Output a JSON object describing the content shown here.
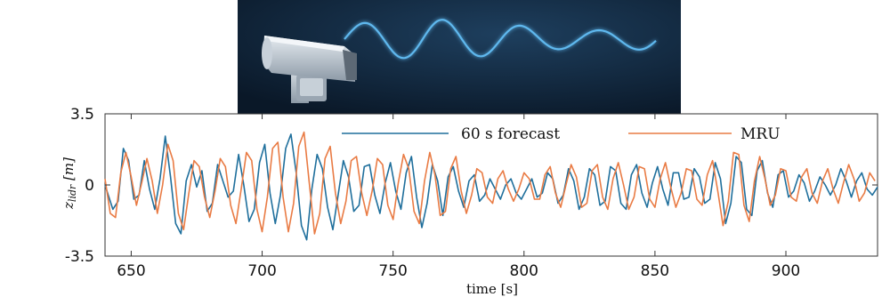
{
  "banner": {
    "description_icon": "lidar-sensor-icon",
    "background": "#0e2236",
    "beam_color": "#5fb8ee"
  },
  "chart_data": {
    "type": "line",
    "xlabel": "time [s]",
    "ylabel": "z_lidr [m]",
    "xlim": [
      640,
      935
    ],
    "ylim": [
      -3.5,
      3.5
    ],
    "x_ticks": [
      650,
      700,
      750,
      800,
      850,
      900
    ],
    "y_ticks": [
      -3.5,
      0,
      3.5
    ],
    "y_tick_labels": [
      "-3.5",
      "0",
      "3.5"
    ],
    "grid": false,
    "legend_position": "top",
    "series": [
      {
        "name": "60 s forecast",
        "color": "#1f6f9c",
        "points": [
          [
            640,
            0.0
          ],
          [
            643,
            -1.2
          ],
          [
            645,
            -0.8
          ],
          [
            647,
            1.8
          ],
          [
            649,
            1.2
          ],
          [
            651,
            -0.7
          ],
          [
            653,
            -0.5
          ],
          [
            655,
            1.2
          ],
          [
            657,
            -0.2
          ],
          [
            659,
            -1.2
          ],
          [
            661,
            0.3
          ],
          [
            663,
            2.4
          ],
          [
            665,
            0.4
          ],
          [
            667,
            -1.9
          ],
          [
            669,
            -2.4
          ],
          [
            671,
            0.2
          ],
          [
            673,
            1.0
          ],
          [
            675,
            -0.1
          ],
          [
            677,
            0.7
          ],
          [
            679,
            -1.3
          ],
          [
            681,
            -0.9
          ],
          [
            683,
            1.0
          ],
          [
            685,
            0.2
          ],
          [
            687,
            -0.6
          ],
          [
            689,
            -0.3
          ],
          [
            691,
            1.5
          ],
          [
            693,
            0.0
          ],
          [
            695,
            -1.8
          ],
          [
            697,
            -1.2
          ],
          [
            699,
            1.1
          ],
          [
            701,
            2.0
          ],
          [
            703,
            -0.4
          ],
          [
            705,
            -1.9
          ],
          [
            707,
            -0.5
          ],
          [
            709,
            1.8
          ],
          [
            711,
            2.5
          ],
          [
            713,
            0.6
          ],
          [
            715,
            -2.0
          ],
          [
            717,
            -2.7
          ],
          [
            719,
            -0.2
          ],
          [
            721,
            1.5
          ],
          [
            723,
            0.8
          ],
          [
            725,
            -1.1
          ],
          [
            727,
            -2.2
          ],
          [
            729,
            -0.5
          ],
          [
            731,
            1.2
          ],
          [
            733,
            0.4
          ],
          [
            735,
            -1.3
          ],
          [
            737,
            -1.0
          ],
          [
            739,
            0.9
          ],
          [
            741,
            1.0
          ],
          [
            743,
            -0.5
          ],
          [
            745,
            -1.4
          ],
          [
            747,
            0.1
          ],
          [
            749,
            1.1
          ],
          [
            751,
            -0.3
          ],
          [
            753,
            -1.2
          ],
          [
            755,
            0.6
          ],
          [
            757,
            1.4
          ],
          [
            759,
            -0.6
          ],
          [
            761,
            -2.1
          ],
          [
            763,
            -0.9
          ],
          [
            765,
            1.0
          ],
          [
            767,
            0.2
          ],
          [
            769,
            -1.5
          ],
          [
            771,
            0.4
          ],
          [
            773,
            0.9
          ],
          [
            775,
            -0.3
          ],
          [
            777,
            -1.1
          ],
          [
            779,
            0.2
          ],
          [
            781,
            0.5
          ],
          [
            783,
            -0.8
          ],
          [
            785,
            -0.5
          ],
          [
            787,
            0.3
          ],
          [
            789,
            -0.2
          ],
          [
            791,
            -0.7
          ],
          [
            793,
            0.0
          ],
          [
            795,
            0.3
          ],
          [
            797,
            -0.4
          ],
          [
            799,
            -0.7
          ],
          [
            801,
            -0.2
          ],
          [
            803,
            0.3
          ],
          [
            805,
            -0.6
          ],
          [
            807,
            -0.4
          ],
          [
            809,
            0.6
          ],
          [
            811,
            0.3
          ],
          [
            813,
            -0.9
          ],
          [
            815,
            -0.5
          ],
          [
            817,
            0.8
          ],
          [
            819,
            0.2
          ],
          [
            821,
            -1.2
          ],
          [
            823,
            -0.6
          ],
          [
            825,
            0.8
          ],
          [
            827,
            0.5
          ],
          [
            829,
            -1.0
          ],
          [
            831,
            -0.8
          ],
          [
            833,
            0.9
          ],
          [
            835,
            0.7
          ],
          [
            837,
            -0.9
          ],
          [
            839,
            -1.2
          ],
          [
            841,
            0.5
          ],
          [
            843,
            1.0
          ],
          [
            845,
            -0.4
          ],
          [
            847,
            -1.1
          ],
          [
            849,
            0.1
          ],
          [
            851,
            0.9
          ],
          [
            853,
            -0.2
          ],
          [
            855,
            -1.0
          ],
          [
            857,
            0.6
          ],
          [
            859,
            0.6
          ],
          [
            861,
            -0.7
          ],
          [
            863,
            -0.6
          ],
          [
            865,
            0.8
          ],
          [
            867,
            0.4
          ],
          [
            869,
            -0.9
          ],
          [
            871,
            -0.7
          ],
          [
            873,
            1.1
          ],
          [
            875,
            0.3
          ],
          [
            877,
            -1.9
          ],
          [
            879,
            -0.9
          ],
          [
            881,
            1.4
          ],
          [
            883,
            1.1
          ],
          [
            885,
            -1.2
          ],
          [
            887,
            -1.5
          ],
          [
            889,
            0.7
          ],
          [
            891,
            1.2
          ],
          [
            893,
            -0.4
          ],
          [
            895,
            -1.1
          ],
          [
            897,
            0.5
          ],
          [
            899,
            0.7
          ],
          [
            901,
            -0.6
          ],
          [
            903,
            -0.3
          ],
          [
            905,
            0.5
          ],
          [
            907,
            0.1
          ],
          [
            909,
            -0.8
          ],
          [
            911,
            -0.3
          ],
          [
            913,
            0.4
          ],
          [
            915,
            0.0
          ],
          [
            917,
            -0.5
          ],
          [
            919,
            0.0
          ],
          [
            921,
            0.8
          ],
          [
            923,
            0.2
          ],
          [
            925,
            -0.6
          ],
          [
            927,
            0.2
          ],
          [
            929,
            0.6
          ],
          [
            931,
            -0.2
          ],
          [
            933,
            -0.5
          ],
          [
            935,
            -0.1
          ]
        ]
      },
      {
        "name": "MRU",
        "color": "#e97b44",
        "points": [
          [
            640,
            0.3
          ],
          [
            642,
            -1.4
          ],
          [
            644,
            -1.6
          ],
          [
            646,
            0.6
          ],
          [
            648,
            1.6
          ],
          [
            650,
            0.4
          ],
          [
            652,
            -1.0
          ],
          [
            654,
            0.1
          ],
          [
            656,
            1.3
          ],
          [
            658,
            0.2
          ],
          [
            660,
            -1.4
          ],
          [
            662,
            0.0
          ],
          [
            664,
            2.0
          ],
          [
            666,
            1.2
          ],
          [
            668,
            -1.4
          ],
          [
            670,
            -2.2
          ],
          [
            672,
            -0.4
          ],
          [
            674,
            1.2
          ],
          [
            676,
            0.9
          ],
          [
            678,
            -0.6
          ],
          [
            680,
            -1.6
          ],
          [
            682,
            -0.3
          ],
          [
            684,
            1.3
          ],
          [
            686,
            0.9
          ],
          [
            688,
            -1.0
          ],
          [
            690,
            -1.9
          ],
          [
            692,
            -0.2
          ],
          [
            694,
            1.6
          ],
          [
            696,
            1.2
          ],
          [
            698,
            -1.2
          ],
          [
            700,
            -2.3
          ],
          [
            702,
            -0.6
          ],
          [
            704,
            1.8
          ],
          [
            706,
            2.1
          ],
          [
            708,
            -0.6
          ],
          [
            710,
            -2.3
          ],
          [
            712,
            -0.9
          ],
          [
            714,
            1.9
          ],
          [
            716,
            2.6
          ],
          [
            718,
            0.1
          ],
          [
            720,
            -2.4
          ],
          [
            722,
            -1.4
          ],
          [
            724,
            1.3
          ],
          [
            726,
            1.9
          ],
          [
            728,
            -0.4
          ],
          [
            730,
            -1.9
          ],
          [
            732,
            -0.8
          ],
          [
            734,
            1.2
          ],
          [
            736,
            1.4
          ],
          [
            738,
            -0.4
          ],
          [
            740,
            -1.5
          ],
          [
            742,
            -0.3
          ],
          [
            744,
            1.3
          ],
          [
            746,
            1.0
          ],
          [
            748,
            -1.0
          ],
          [
            750,
            -1.7
          ],
          [
            752,
            0.1
          ],
          [
            754,
            1.5
          ],
          [
            756,
            0.8
          ],
          [
            758,
            -1.3
          ],
          [
            760,
            -1.9
          ],
          [
            762,
            0.2
          ],
          [
            764,
            1.6
          ],
          [
            766,
            0.5
          ],
          [
            768,
            -1.5
          ],
          [
            770,
            -1.3
          ],
          [
            772,
            0.8
          ],
          [
            774,
            1.4
          ],
          [
            776,
            -0.3
          ],
          [
            778,
            -1.4
          ],
          [
            780,
            -0.5
          ],
          [
            782,
            0.8
          ],
          [
            784,
            0.6
          ],
          [
            786,
            -0.6
          ],
          [
            788,
            -0.9
          ],
          [
            790,
            0.3
          ],
          [
            792,
            0.7
          ],
          [
            794,
            -0.2
          ],
          [
            796,
            -0.8
          ],
          [
            798,
            -0.2
          ],
          [
            800,
            0.6
          ],
          [
            802,
            0.3
          ],
          [
            804,
            -0.7
          ],
          [
            806,
            -0.7
          ],
          [
            808,
            0.5
          ],
          [
            810,
            0.9
          ],
          [
            812,
            -0.4
          ],
          [
            814,
            -1.1
          ],
          [
            816,
            0.0
          ],
          [
            818,
            1.0
          ],
          [
            820,
            0.4
          ],
          [
            822,
            -1.1
          ],
          [
            824,
            -0.9
          ],
          [
            826,
            0.7
          ],
          [
            828,
            1.0
          ],
          [
            830,
            -0.6
          ],
          [
            832,
            -1.2
          ],
          [
            834,
            0.3
          ],
          [
            836,
            1.1
          ],
          [
            838,
            0.0
          ],
          [
            840,
            -1.2
          ],
          [
            842,
            -0.6
          ],
          [
            844,
            0.9
          ],
          [
            846,
            0.8
          ],
          [
            848,
            -0.7
          ],
          [
            850,
            -1.1
          ],
          [
            852,
            0.3
          ],
          [
            854,
            1.1
          ],
          [
            856,
            -0.1
          ],
          [
            858,
            -1.1
          ],
          [
            860,
            -0.4
          ],
          [
            862,
            0.8
          ],
          [
            864,
            0.7
          ],
          [
            866,
            -0.7
          ],
          [
            868,
            -1.0
          ],
          [
            870,
            0.5
          ],
          [
            872,
            1.2
          ],
          [
            874,
            -0.3
          ],
          [
            876,
            -2.0
          ],
          [
            878,
            -0.8
          ],
          [
            880,
            1.6
          ],
          [
            882,
            1.5
          ],
          [
            884,
            -1.0
          ],
          [
            886,
            -1.8
          ],
          [
            888,
            0.2
          ],
          [
            890,
            1.4
          ],
          [
            892,
            0.3
          ],
          [
            894,
            -1.0
          ],
          [
            896,
            -0.5
          ],
          [
            898,
            0.8
          ],
          [
            900,
            0.7
          ],
          [
            902,
            -0.6
          ],
          [
            904,
            -0.8
          ],
          [
            906,
            0.4
          ],
          [
            908,
            0.8
          ],
          [
            910,
            -0.4
          ],
          [
            912,
            -0.9
          ],
          [
            914,
            0.2
          ],
          [
            916,
            0.8
          ],
          [
            918,
            -0.2
          ],
          [
            920,
            -0.9
          ],
          [
            922,
            0.1
          ],
          [
            924,
            1.0
          ],
          [
            926,
            0.3
          ],
          [
            928,
            -0.8
          ],
          [
            930,
            -0.4
          ],
          [
            932,
            0.6
          ],
          [
            934,
            0.2
          ]
        ]
      }
    ]
  }
}
